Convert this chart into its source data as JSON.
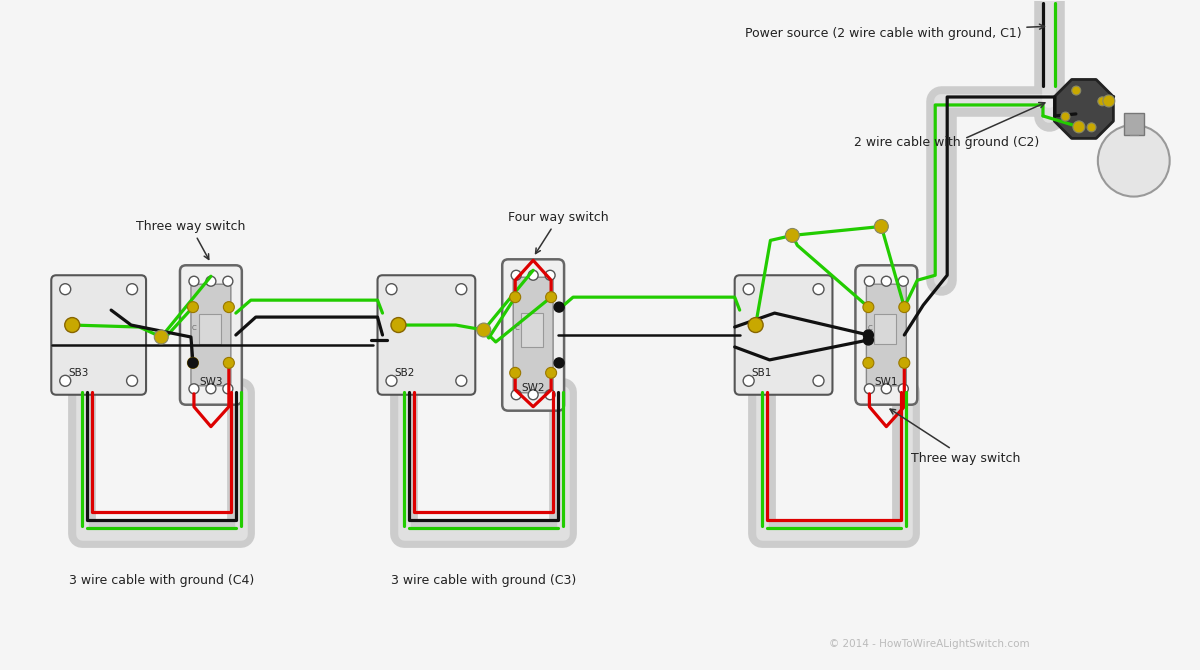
{
  "bg": "#f5f5f5",
  "watermark": "© 2014 - HowToWireALightSwitch.com",
  "wm_color": "#bbbbbb",
  "conduit_color": "#cccccc",
  "conduit_edge": "#aaaaaa",
  "box_fill": "#e8e8e8",
  "box_edge": "#555555",
  "face_fill": "#f0f0f0",
  "face_edge": "#666666",
  "screw_gold": "#c8a800",
  "screw_dark": "#888877",
  "wire_green": "#22cc00",
  "wire_black": "#111111",
  "wire_red": "#dd0000",
  "wire_white": "#eeeeee",
  "dot_color": "#111111",
  "label_color": "#222222",
  "arrow_color": "#333333",
  "lbl_three_way_left": "Three way switch",
  "lbl_three_way_right": "Three way switch",
  "lbl_four_way": "Four way switch",
  "lbl_c3": "3 wire cable with ground (C3)",
  "lbl_c4": "3 wire cable with ground (C4)",
  "lbl_c1": "Power source (2 wire cable with ground, C1)",
  "lbl_c2": "2 wire cable with ground (C2)",
  "lbl_sb1": "SB1",
  "lbl_sb2": "SB2",
  "lbl_sb3": "SB3",
  "lbl_sw1": "SW1",
  "lbl_sw2": "SW2",
  "lbl_sw3": "SW3"
}
